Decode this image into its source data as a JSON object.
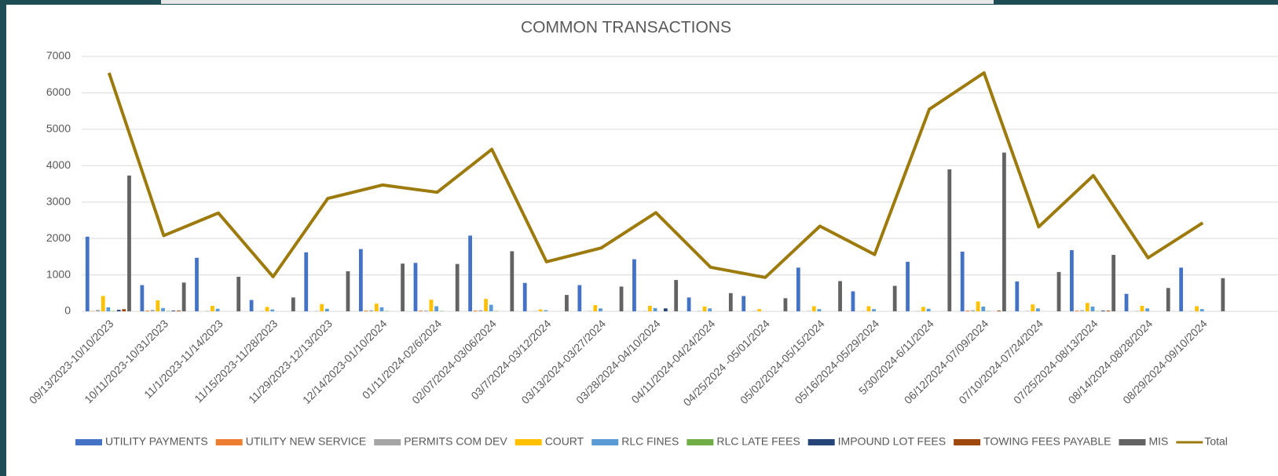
{
  "chart_data": {
    "type": "combo",
    "title": "COMMON TRANSACTIONS",
    "categories": [
      "09/13/2023-10/10/2023",
      "10/11/2023-10/31/2023",
      "11/1/2023-11/14/2023",
      "11/15/2023-11/28/2023",
      "11/29/2023-12/13/2023",
      "12/14/2023-01/10/2024",
      "01/11/2024-02/6/2024",
      "02/07/2024-03/06/2024",
      "03/7/2024-03/12/2024",
      "03/13/2024-03/27/2024",
      "03/28/2024-04/10/2024",
      "04/11/2024-04/24/2024",
      "04/25/2024 -05/01/2024",
      "05/02/2024-05/15/2024",
      "05/16/2024-05/29/2024",
      "5/30/2024-6/11/2024",
      "06/12/2024-07/09/2024",
      "07/10/2024-07/24/2024",
      "07/25/2024-08/13/2024",
      "08/14/2024-08/28/2024",
      "08/29/2024-09/10/2024"
    ],
    "series": [
      {
        "name": "UTILITY PAYMENTS",
        "type": "bar",
        "color": "#4472c4",
        "values": [
          2050,
          720,
          1470,
          310,
          1620,
          1710,
          1330,
          2080,
          780,
          720,
          1430,
          380,
          420,
          1200,
          550,
          1360,
          1640,
          820,
          1680,
          480,
          1200
        ]
      },
      {
        "name": "UTILITY NEW SERVICE",
        "type": "bar",
        "color": "#ed7d31",
        "values": [
          10,
          20,
          0,
          0,
          0,
          20,
          20,
          20,
          0,
          0,
          0,
          0,
          0,
          0,
          0,
          0,
          20,
          0,
          20,
          0,
          0
        ]
      },
      {
        "name": "PERMITS COM DEV",
        "type": "bar",
        "color": "#a5a5a5",
        "values": [
          40,
          40,
          10,
          10,
          10,
          30,
          20,
          30,
          10,
          10,
          10,
          10,
          10,
          10,
          10,
          10,
          30,
          10,
          30,
          10,
          10
        ]
      },
      {
        "name": "COURT",
        "type": "bar",
        "color": "#ffc000",
        "values": [
          420,
          300,
          150,
          120,
          200,
          210,
          320,
          340,
          50,
          170,
          150,
          130,
          60,
          140,
          140,
          120,
          270,
          190,
          230,
          150,
          140
        ]
      },
      {
        "name": "RLC FINES",
        "type": "bar",
        "color": "#5b9bd5",
        "values": [
          110,
          90,
          70,
          50,
          70,
          110,
          140,
          180,
          30,
          80,
          90,
          80,
          0,
          60,
          60,
          70,
          130,
          80,
          130,
          80,
          60
        ]
      },
      {
        "name": "RLC LATE FEES",
        "type": "bar",
        "color": "#70ad47",
        "values": [
          10,
          10,
          0,
          0,
          0,
          10,
          10,
          10,
          0,
          0,
          0,
          0,
          0,
          0,
          0,
          0,
          10,
          0,
          10,
          0,
          0
        ]
      },
      {
        "name": "IMPOUND LOT FEES",
        "type": "bar",
        "color": "#264478",
        "values": [
          40,
          20,
          0,
          0,
          0,
          0,
          0,
          0,
          0,
          0,
          80,
          0,
          0,
          0,
          0,
          0,
          0,
          0,
          20,
          0,
          0
        ]
      },
      {
        "name": "TOWING FEES PAYABLE",
        "type": "bar",
        "color": "#9e480e",
        "values": [
          60,
          20,
          0,
          0,
          0,
          0,
          0,
          0,
          0,
          0,
          0,
          0,
          0,
          0,
          0,
          0,
          20,
          0,
          20,
          0,
          0
        ]
      },
      {
        "name": "MIS",
        "type": "bar",
        "color": "#636363",
        "values": [
          3730,
          790,
          950,
          380,
          1100,
          1310,
          1300,
          1650,
          450,
          680,
          860,
          500,
          360,
          830,
          700,
          3900,
          4360,
          1080,
          1550,
          640,
          910
        ]
      },
      {
        "name": "Total",
        "type": "line",
        "color": "#9c7a0c",
        "values": [
          6550,
          2080,
          2700,
          950,
          3100,
          3470,
          3270,
          4450,
          1360,
          1740,
          2710,
          1210,
          930,
          2340,
          1560,
          5550,
          6550,
          2320,
          3730,
          1470,
          2430
        ]
      }
    ],
    "ylim": [
      0,
      7000
    ],
    "yticks": [
      0,
      1000,
      2000,
      3000,
      4000,
      5000,
      6000,
      7000
    ],
    "grid": true,
    "legend": "bottom"
  }
}
